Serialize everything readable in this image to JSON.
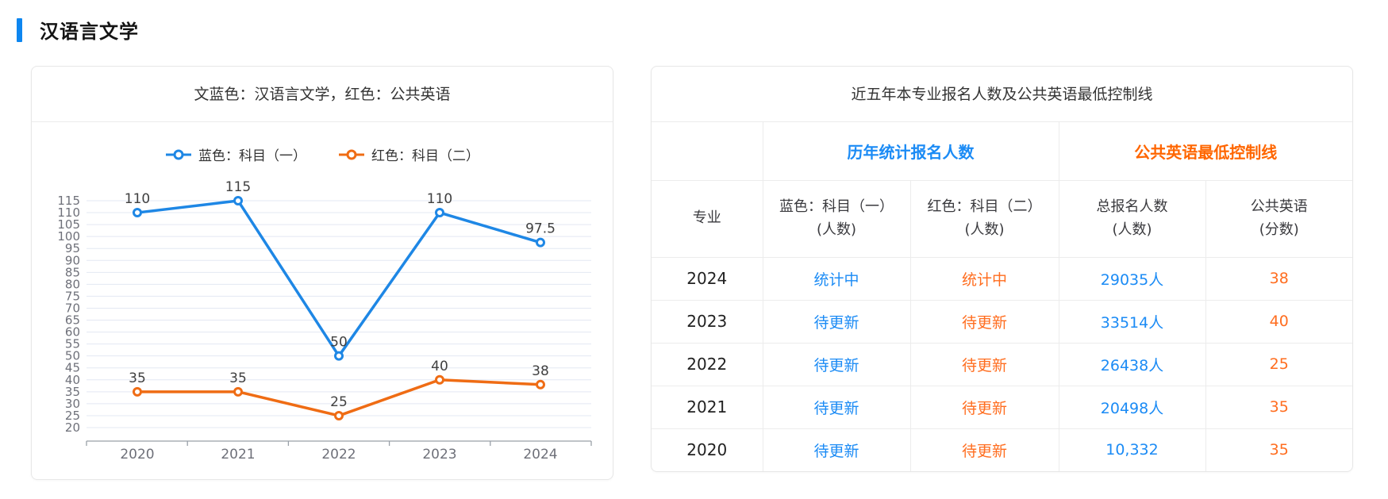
{
  "page": {
    "title": "汉语言文学"
  },
  "chart_card": {
    "title": "文蓝色：汉语言文学，红色：公共英语"
  },
  "chart_data": {
    "type": "line",
    "title": "文蓝色：汉语言文学，红色：公共英语",
    "categories": [
      "2020",
      "2021",
      "2022",
      "2023",
      "2024"
    ],
    "series": [
      {
        "name": "蓝色：科目（一）",
        "color": "#1e87e5",
        "values": [
          110,
          115,
          50,
          110,
          97.5
        ]
      },
      {
        "name": "红色：科目（二）",
        "color": "#ef6c14",
        "values": [
          35,
          35,
          25,
          40,
          38
        ]
      }
    ],
    "ylim": [
      20,
      115
    ],
    "ytick_step": 5,
    "grid": true,
    "legend_position": "top",
    "xlabel": "",
    "ylabel": ""
  },
  "table_card": {
    "title": "近五年本专业报名人数及公共英语最低控制线",
    "group_headers": {
      "enrollment": "历年统计报名人数",
      "english_line": "公共英语最低控制线"
    },
    "columns": {
      "major": "专业",
      "subject1_line1": "蓝色：科目（一）",
      "subject1_line2": "(人数)",
      "subject2_line1": "红色：科目（二）",
      "subject2_line2": "(人数)",
      "total_line1": "总报名人数",
      "total_line2": "(人数)",
      "english_line1": "公共英语",
      "english_line2": "(分数)"
    },
    "rows": [
      {
        "year": "2024",
        "subject1": "统计中",
        "subject2": "统计中",
        "total": "29035人",
        "english": "38"
      },
      {
        "year": "2023",
        "subject1": "待更新",
        "subject2": "待更新",
        "total": "33514人",
        "english": "40"
      },
      {
        "year": "2022",
        "subject1": "待更新",
        "subject2": "待更新",
        "total": "26438人",
        "english": "25"
      },
      {
        "year": "2021",
        "subject1": "待更新",
        "subject2": "待更新",
        "total": "20498人",
        "english": "35"
      },
      {
        "year": "2020",
        "subject1": "待更新",
        "subject2": "待更新",
        "total": "10,332",
        "english": "35"
      }
    ]
  },
  "colors": {
    "accent_blue": "#0d86f0",
    "text_blue": "#1b8bf5",
    "text_orange": "#ff6d1f",
    "header_orange": "#ff6600",
    "gridline": "#e3e8f3",
    "axis": "#99a0a8"
  }
}
